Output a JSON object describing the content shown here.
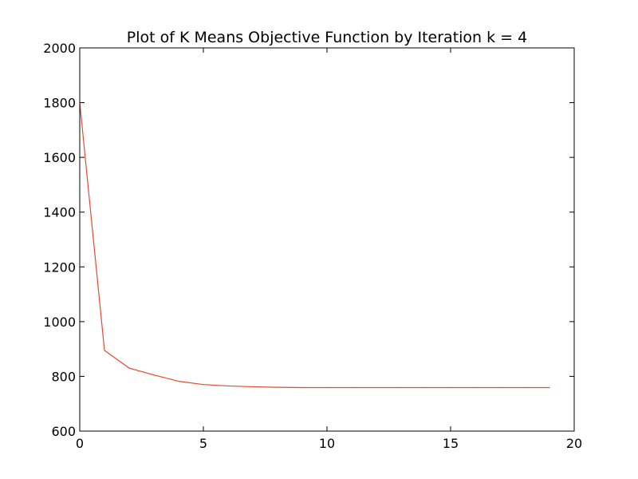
{
  "chart_data": {
    "type": "line",
    "title": "Plot of K Means Objective Function by Iteration k = 4",
    "xlabel": "",
    "ylabel": "",
    "xlim": [
      0,
      20
    ],
    "ylim": [
      600,
      2000
    ],
    "xticks": [
      0,
      5,
      10,
      15,
      20
    ],
    "yticks": [
      600,
      800,
      1000,
      1200,
      1400,
      1600,
      1800,
      2000
    ],
    "grid": false,
    "legend": "none",
    "series": [
      {
        "color": "#e24a33",
        "x": [
          0,
          1,
          2,
          3,
          4,
          5,
          6,
          7,
          8,
          9,
          10,
          11,
          12,
          13,
          14,
          15,
          16,
          17,
          18,
          19
        ],
        "y": [
          1800,
          895,
          830,
          805,
          782,
          770,
          765,
          762,
          760,
          759,
          759,
          759,
          759,
          759,
          759,
          759,
          759,
          759,
          759,
          759
        ]
      }
    ]
  }
}
